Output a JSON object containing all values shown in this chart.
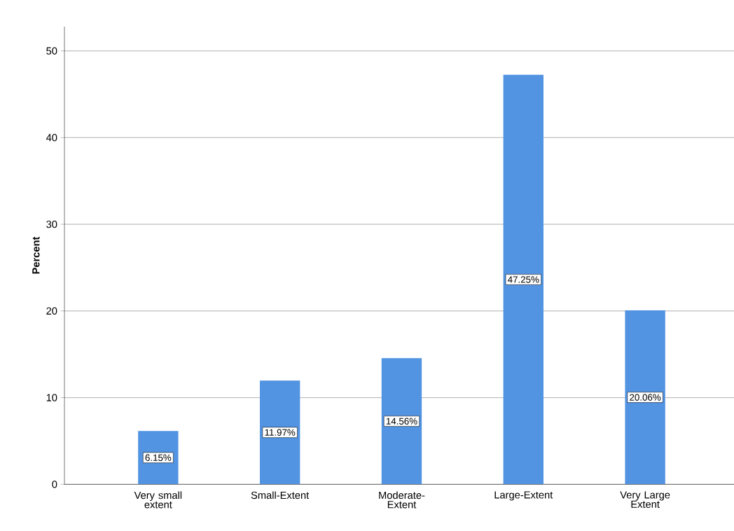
{
  "chart_data": {
    "type": "bar",
    "ylabel": "Percent",
    "categories": [
      "Very small extent",
      "Small-Extent",
      "Moderate-Extent",
      "Large-Extent",
      "Very Large Extent"
    ],
    "values": [
      6.15,
      11.97,
      14.56,
      47.25,
      20.06
    ],
    "value_labels": [
      "6.15%",
      "11.97%",
      "14.56%",
      "47.25%",
      "20.06%"
    ],
    "color": "#5294e2",
    "ylim": [
      0,
      52.8
    ],
    "yticks": [
      0,
      10,
      20,
      30,
      40,
      50
    ],
    "grid": "y"
  }
}
